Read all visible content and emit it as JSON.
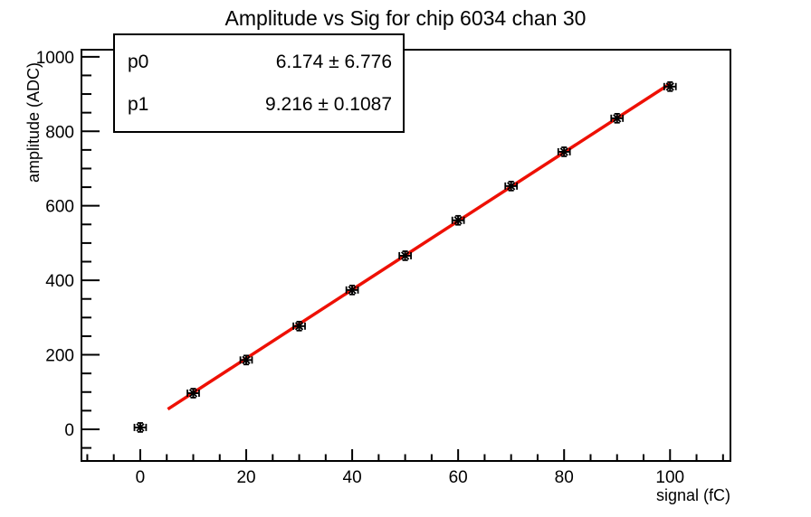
{
  "stats_box": {
    "rows": [
      {
        "param": "p0",
        "value": "6.174 ± 6.776"
      },
      {
        "param": "p1",
        "value": "9.216 ± 0.1087"
      }
    ]
  },
  "chart_data": {
    "type": "scatter",
    "title": "Amplitude vs Sig for chip 6034 chan 30",
    "xlabel": "signal (fC)",
    "ylabel": "amplitude (ADC)",
    "xlim": [
      -11.1,
      111.4
    ],
    "ylim": [
      -85,
      1019
    ],
    "x_ticks": [
      0,
      20,
      40,
      60,
      80,
      100
    ],
    "y_ticks": [
      0,
      200,
      400,
      600,
      800,
      1000
    ],
    "x_minor_step": 5,
    "y_minor_step": 50,
    "grid": false,
    "legend_position": "none",
    "marker_style": "asterisk-with-error-bars",
    "marker_color": "#000000",
    "axis_color": "#000000",
    "points": {
      "x": [
        0,
        10,
        20,
        30,
        40,
        50,
        60,
        70,
        80,
        90,
        100
      ],
      "y": [
        5,
        97,
        186,
        277,
        374,
        466,
        561,
        653,
        745,
        835,
        920
      ],
      "xerr": 1.1,
      "yerr": 12
    },
    "fit": {
      "type": "linear",
      "p0": 6.174,
      "p0_error": 6.776,
      "p1": 9.216,
      "p1_error": 0.1087,
      "x_start": 5.2,
      "x_end": 100,
      "color": "#ee1004"
    }
  }
}
